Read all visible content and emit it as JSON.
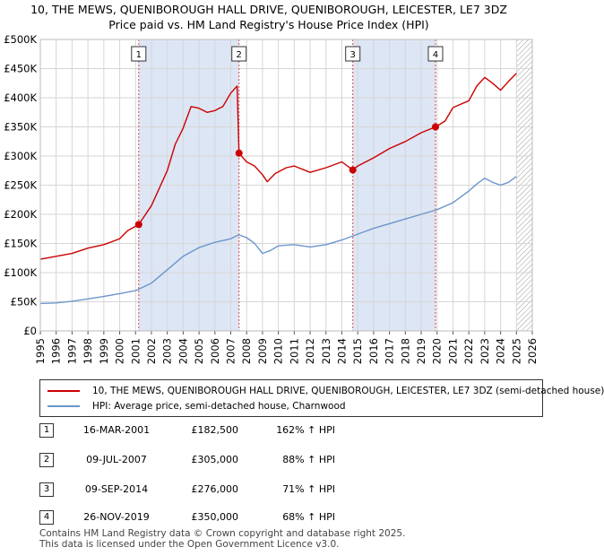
{
  "title_line1": "10, THE MEWS, QUENIBOROUGH HALL DRIVE, QUENIBOROUGH, LEICESTER, LE7 3DZ",
  "title_line2": "Price paid vs. HM Land Registry's House Price Index (HPI)",
  "chart_data": {
    "type": "line",
    "xlim": [
      1995,
      2026
    ],
    "ylim": [
      0,
      500000
    ],
    "y_ticks": [
      {
        "value": 0,
        "label": "£0"
      },
      {
        "value": 50000,
        "label": "£50K"
      },
      {
        "value": 100000,
        "label": "£100K"
      },
      {
        "value": 150000,
        "label": "£150K"
      },
      {
        "value": 200000,
        "label": "£200K"
      },
      {
        "value": 250000,
        "label": "£250K"
      },
      {
        "value": 300000,
        "label": "£300K"
      },
      {
        "value": 350000,
        "label": "£350K"
      },
      {
        "value": 400000,
        "label": "£400K"
      },
      {
        "value": 450000,
        "label": "£450K"
      },
      {
        "value": 500000,
        "label": "£500K"
      }
    ],
    "x_ticks": [
      "1995",
      "1996",
      "1997",
      "1998",
      "1999",
      "2000",
      "2001",
      "2002",
      "2003",
      "2004",
      "2005",
      "2006",
      "2007",
      "2008",
      "2009",
      "2010",
      "2011",
      "2012",
      "2013",
      "2014",
      "2015",
      "2016",
      "2017",
      "2018",
      "2019",
      "2020",
      "2021",
      "2022",
      "2023",
      "2024",
      "2025",
      "2026"
    ],
    "shaded_periods": [
      [
        2001.2,
        2007.52
      ],
      [
        2014.69,
        2019.9
      ]
    ],
    "hatched_from": 2025.0,
    "colors": {
      "property": "#cc0000",
      "hpi": "#6b96cc",
      "shade": "#dde6f5",
      "grid": "#d6d6d6"
    },
    "series": [
      {
        "name": "10, THE MEWS, QUENIBOROUGH HALL DRIVE, QUENIBOROUGH, LEICESTER, LE7 3DZ (semi-detached house)",
        "x": [
          1995,
          1996,
          1997,
          1998,
          1999,
          2000,
          2000.5,
          2001.2,
          2002,
          2003,
          2003.5,
          2004,
          2004.5,
          2005,
          2005.5,
          2006,
          2006.5,
          2007,
          2007.4,
          2007.52,
          2008,
          2008.5,
          2009,
          2009.3,
          2009.8,
          2010.5,
          2011,
          2012,
          2013,
          2014,
          2014.69,
          2015,
          2016,
          2017,
          2018,
          2019,
          2019.9,
          2020.5,
          2021,
          2022,
          2022.5,
          2023,
          2023.5,
          2024,
          2024.5,
          2025
        ],
        "values": [
          123000,
          128000,
          133000,
          142000,
          148000,
          158000,
          172000,
          182500,
          215000,
          275000,
          320000,
          348000,
          385000,
          382000,
          375000,
          378000,
          385000,
          408000,
          420000,
          305000,
          290000,
          283000,
          268000,
          256000,
          270000,
          280000,
          283000,
          272000,
          280000,
          290000,
          276000,
          283000,
          297000,
          313000,
          325000,
          340000,
          350000,
          360000,
          383000,
          395000,
          420000,
          435000,
          425000,
          413000,
          428000,
          442000
        ]
      },
      {
        "name": "HPI: Average price, semi-detached house, Charnwood",
        "x": [
          1995,
          1996,
          1997,
          1998,
          1999,
          2000,
          2001,
          2002,
          2003,
          2004,
          2005,
          2006,
          2007,
          2007.5,
          2008,
          2008.5,
          2009,
          2009.5,
          2010,
          2011,
          2012,
          2013,
          2014,
          2015,
          2016,
          2017,
          2018,
          2019,
          2020,
          2021,
          2022,
          2022.5,
          2023,
          2023.5,
          2024,
          2024.5,
          2025
        ],
        "values": [
          47000,
          48000,
          51000,
          55000,
          59000,
          64000,
          69000,
          82000,
          105000,
          128000,
          143000,
          152000,
          158000,
          165000,
          160000,
          150000,
          133000,
          138000,
          146000,
          148000,
          144000,
          148000,
          156000,
          166000,
          176000,
          184000,
          192000,
          200000,
          208000,
          220000,
          240000,
          252000,
          262000,
          255000,
          250000,
          255000,
          265000
        ]
      }
    ],
    "sales": [
      {
        "label": "1",
        "x": 2001.2,
        "value": 182500
      },
      {
        "label": "2",
        "x": 2007.52,
        "value": 305000
      },
      {
        "label": "3",
        "x": 2014.69,
        "value": 276000
      },
      {
        "label": "4",
        "x": 2019.9,
        "value": 350000
      }
    ]
  },
  "legend": {
    "property_label": "10, THE MEWS, QUENIBOROUGH HALL DRIVE, QUENIBOROUGH, LEICESTER, LE7 3DZ (semi-detached house)",
    "hpi_label": "HPI: Average price, semi-detached house, Charnwood"
  },
  "sales_table": [
    {
      "num": "1",
      "date": "16-MAR-2001",
      "price": "£182,500",
      "hpi": "162% ↑ HPI"
    },
    {
      "num": "2",
      "date": "09-JUL-2007",
      "price": "£305,000",
      "hpi": "88% ↑ HPI"
    },
    {
      "num": "3",
      "date": "09-SEP-2014",
      "price": "£276,000",
      "hpi": "71% ↑ HPI"
    },
    {
      "num": "4",
      "date": "26-NOV-2019",
      "price": "£350,000",
      "hpi": "68% ↑ HPI"
    }
  ],
  "footer": {
    "line1": "Contains HM Land Registry data © Crown copyright and database right 2025.",
    "line2": "This data is licensed under the Open Government Licence v3.0."
  }
}
